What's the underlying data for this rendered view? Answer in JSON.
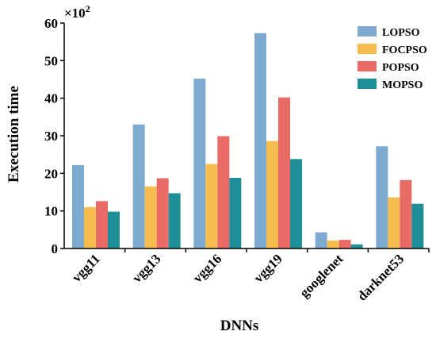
{
  "chart_data": {
    "type": "bar",
    "categories": [
      "vgg11",
      "vgg13",
      "vgg16",
      "vgg19",
      "googlenet",
      "darknet53"
    ],
    "series": [
      {
        "name": "LOPSO",
        "color": "#7eaacf",
        "values": [
          22.2,
          33.0,
          45.2,
          57.3,
          4.3,
          27.2
        ]
      },
      {
        "name": "FOCPSO",
        "color": "#f5bd4e",
        "values": [
          11.0,
          16.5,
          22.5,
          28.6,
          2.1,
          13.6
        ]
      },
      {
        "name": "POPSO",
        "color": "#e96b66",
        "values": [
          12.6,
          18.7,
          29.9,
          40.2,
          2.3,
          18.2
        ]
      },
      {
        "name": "MOPSO",
        "color": "#1f8f97",
        "values": [
          9.8,
          14.7,
          18.8,
          23.8,
          1.1,
          11.9
        ]
      }
    ],
    "xlabel": "DNNs",
    "ylabel": "Execution time",
    "y_multiplier_base": "×10",
    "y_multiplier_exp": "2",
    "ylim": [
      0,
      60
    ],
    "yticks": [
      "0",
      "10",
      "20",
      "30",
      "40",
      "50",
      "60"
    ],
    "legend_position": "top-right",
    "grid": false
  }
}
